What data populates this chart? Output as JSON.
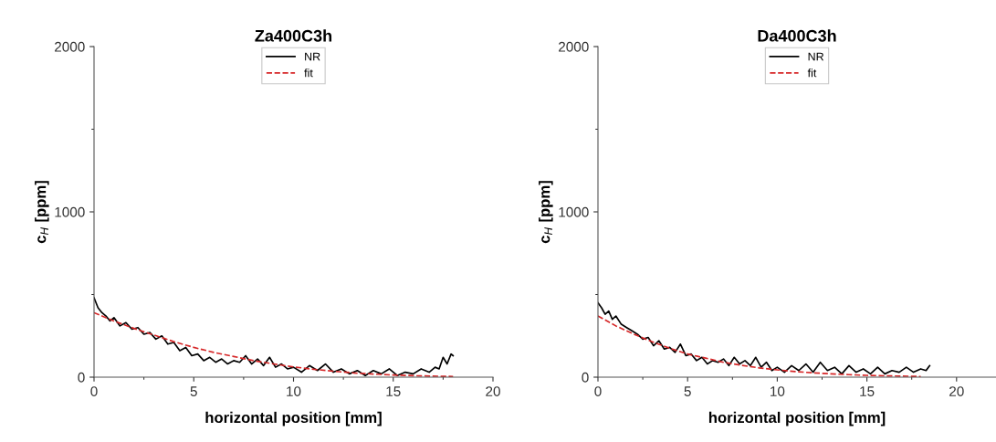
{
  "chart_data": [
    {
      "type": "line",
      "title": "Za400C3h",
      "xlabel": "horizontal position [mm]",
      "ylabel": "c$_{H}$ [ppm]",
      "xlim": [
        0,
        20
      ],
      "xticks": [
        0,
        5,
        10,
        15,
        20
      ],
      "ylim": [
        0,
        2000
      ],
      "yticks": [
        0,
        1000,
        2000
      ],
      "legend": "top",
      "grid": false,
      "series": [
        {
          "name": "NR",
          "color": "#000000",
          "line_style": "solid",
          "x": [
            0,
            0.2,
            0.4,
            0.6,
            0.8,
            1.0,
            1.3,
            1.6,
            1.9,
            2.2,
            2.5,
            2.8,
            3.1,
            3.4,
            3.7,
            4.0,
            4.3,
            4.6,
            4.9,
            5.2,
            5.5,
            5.8,
            6.1,
            6.4,
            6.7,
            7.0,
            7.3,
            7.6,
            7.9,
            8.2,
            8.5,
            8.8,
            9.1,
            9.4,
            9.7,
            10.0,
            10.4,
            10.8,
            11.2,
            11.6,
            12.0,
            12.4,
            12.8,
            13.2,
            13.6,
            14.0,
            14.4,
            14.8,
            15.2,
            15.6,
            16.0,
            16.4,
            16.8,
            17.1,
            17.3,
            17.5,
            17.7,
            17.9,
            18.0
          ],
          "values": [
            480,
            420,
            390,
            370,
            340,
            360,
            310,
            330,
            290,
            300,
            260,
            270,
            230,
            250,
            200,
            210,
            160,
            180,
            130,
            140,
            100,
            120,
            90,
            110,
            80,
            100,
            90,
            130,
            80,
            110,
            70,
            120,
            60,
            80,
            50,
            60,
            30,
            70,
            40,
            80,
            30,
            50,
            20,
            40,
            10,
            40,
            20,
            50,
            10,
            30,
            20,
            50,
            30,
            60,
            50,
            120,
            80,
            140,
            130
          ]
        },
        {
          "name": "fit",
          "color": "#d62728",
          "line_style": "dashed",
          "x": [
            0,
            1,
            2,
            3,
            4,
            5,
            6,
            7,
            8,
            9,
            10,
            11,
            12,
            13,
            14,
            15,
            16,
            17,
            18
          ],
          "values": [
            390,
            340,
            295,
            255,
            215,
            180,
            150,
            125,
            100,
            80,
            62,
            48,
            36,
            26,
            19,
            13,
            9,
            6,
            4
          ]
        }
      ]
    },
    {
      "type": "line",
      "title": "Da400C3h",
      "xlabel": "horizontal position [mm]",
      "ylabel": "c$_{H}$ [ppm]",
      "xlim": [
        0,
        22.2
      ],
      "xticks": [
        0,
        5,
        10,
        15,
        20
      ],
      "ylim": [
        0,
        2000
      ],
      "yticks": [
        0,
        1000,
        2000
      ],
      "legend": "top",
      "grid": false,
      "series": [
        {
          "name": "NR",
          "color": "#000000",
          "line_style": "solid",
          "x": [
            0,
            0.2,
            0.4,
            0.6,
            0.8,
            1.0,
            1.3,
            1.6,
            1.9,
            2.2,
            2.5,
            2.8,
            3.1,
            3.4,
            3.7,
            4.0,
            4.3,
            4.6,
            4.9,
            5.2,
            5.5,
            5.8,
            6.1,
            6.4,
            6.7,
            7.0,
            7.3,
            7.6,
            7.9,
            8.2,
            8.5,
            8.8,
            9.1,
            9.4,
            9.7,
            10.0,
            10.4,
            10.8,
            11.2,
            11.6,
            12.0,
            12.4,
            12.8,
            13.2,
            13.6,
            14.0,
            14.4,
            14.8,
            15.2,
            15.6,
            16.0,
            16.4,
            16.8,
            17.2,
            17.6,
            18.0,
            18.3,
            18.5
          ],
          "values": [
            450,
            420,
            380,
            400,
            350,
            370,
            320,
            300,
            280,
            260,
            230,
            240,
            190,
            220,
            170,
            180,
            150,
            200,
            130,
            140,
            100,
            120,
            80,
            100,
            90,
            110,
            70,
            120,
            80,
            100,
            70,
            120,
            60,
            90,
            40,
            60,
            30,
            70,
            40,
            80,
            30,
            90,
            40,
            60,
            20,
            70,
            30,
            50,
            20,
            60,
            20,
            40,
            30,
            60,
            30,
            50,
            40,
            70
          ]
        },
        {
          "name": "fit",
          "color": "#d62728",
          "line_style": "dashed",
          "x": [
            0,
            1,
            2,
            3,
            4,
            5,
            6,
            7,
            8,
            9,
            10,
            11,
            12,
            13,
            14,
            15,
            16,
            17,
            18
          ],
          "values": [
            370,
            310,
            260,
            215,
            175,
            140,
            115,
            90,
            72,
            56,
            44,
            34,
            26,
            20,
            15,
            11,
            8,
            6,
            4
          ]
        }
      ]
    }
  ]
}
